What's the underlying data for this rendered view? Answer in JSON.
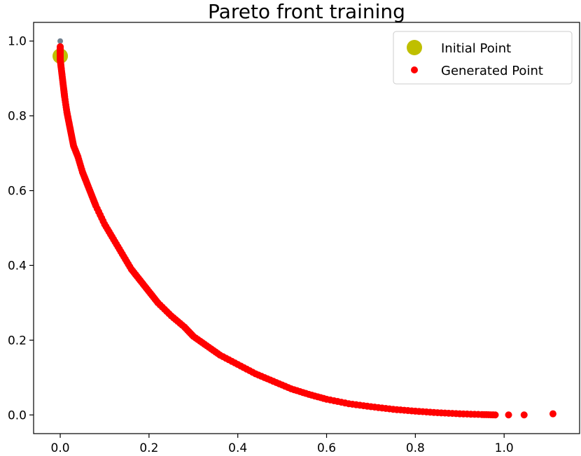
{
  "chart_data": {
    "type": "scatter",
    "title": "Pareto front training",
    "xlabel": "",
    "ylabel": "",
    "xlim": [
      -0.06,
      1.17
    ],
    "ylim": [
      -0.05,
      1.05
    ],
    "xticks": [
      0.0,
      0.2,
      0.4,
      0.6,
      0.8,
      1.0
    ],
    "yticks": [
      0.0,
      0.2,
      0.4,
      0.6,
      0.8,
      1.0
    ],
    "xtick_labels": [
      "0.0",
      "0.2",
      "0.4",
      "0.6",
      "0.8",
      "1.0"
    ],
    "ytick_labels": [
      "0.0",
      "0.2",
      "0.4",
      "0.6",
      "0.8",
      "1.0"
    ],
    "grid": false,
    "legend_position": "top-right",
    "colors": {
      "initial": "#bfbf00",
      "generated": "#ff0000",
      "background_points": "#708090"
    },
    "legend": [
      "Initial Point",
      "Generated Point"
    ],
    "series": [
      {
        "name": "Initial Point",
        "color": "#bfbf00",
        "points": [
          [
            0.0,
            0.96
          ]
        ]
      },
      {
        "name": "Generated Point",
        "color": "#ff0000",
        "points": [
          [
            0.0,
            0.985
          ],
          [
            0.0,
            0.97
          ],
          [
            0.0,
            0.95
          ],
          [
            0.002,
            0.93
          ],
          [
            0.005,
            0.9
          ],
          [
            0.008,
            0.87
          ],
          [
            0.01,
            0.85
          ],
          [
            0.015,
            0.81
          ],
          [
            0.02,
            0.78
          ],
          [
            0.025,
            0.75
          ],
          [
            0.03,
            0.72
          ],
          [
            0.04,
            0.69
          ],
          [
            0.05,
            0.65
          ],
          [
            0.06,
            0.62
          ],
          [
            0.07,
            0.59
          ],
          [
            0.08,
            0.56
          ],
          [
            0.1,
            0.51
          ],
          [
            0.12,
            0.47
          ],
          [
            0.14,
            0.43
          ],
          [
            0.16,
            0.39
          ],
          [
            0.18,
            0.36
          ],
          [
            0.2,
            0.33
          ],
          [
            0.22,
            0.3
          ],
          [
            0.25,
            0.265
          ],
          [
            0.28,
            0.235
          ],
          [
            0.3,
            0.21
          ],
          [
            0.33,
            0.185
          ],
          [
            0.36,
            0.16
          ],
          [
            0.4,
            0.135
          ],
          [
            0.44,
            0.11
          ],
          [
            0.48,
            0.09
          ],
          [
            0.52,
            0.07
          ],
          [
            0.56,
            0.055
          ],
          [
            0.6,
            0.042
          ],
          [
            0.65,
            0.03
          ],
          [
            0.7,
            0.022
          ],
          [
            0.75,
            0.015
          ],
          [
            0.8,
            0.01
          ],
          [
            0.85,
            0.006
          ],
          [
            0.9,
            0.003
          ],
          [
            0.95,
            0.001
          ],
          [
            0.98,
            0.0
          ],
          [
            1.01,
            0.0
          ],
          [
            1.045,
            0.0
          ],
          [
            1.11,
            0.003
          ]
        ]
      }
    ]
  }
}
